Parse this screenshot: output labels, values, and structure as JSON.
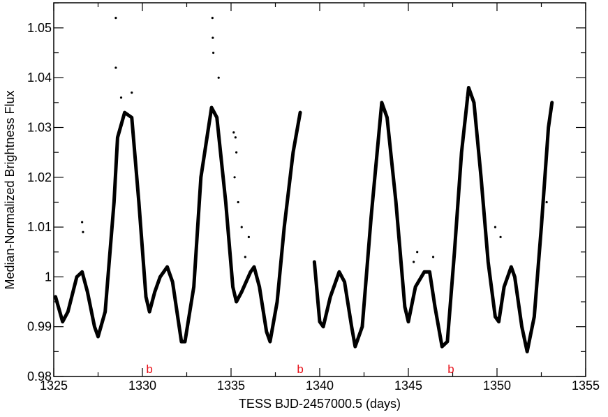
{
  "chart_data": {
    "type": "scatter",
    "title": "",
    "xlabel": "TESS BJD-2457000.5 (days)",
    "ylabel": "Median-Normalized Brightness Flux",
    "xlim": [
      1325,
      1355
    ],
    "ylim": [
      0.98,
      1.055
    ],
    "xticks": [
      1325,
      1330,
      1335,
      1340,
      1345,
      1350,
      1355
    ],
    "xtick_labels": [
      "1325",
      "1330",
      "1335",
      "1340",
      "1345",
      "1350",
      "1355"
    ],
    "yticks": [
      0.98,
      0.99,
      1.0,
      1.01,
      1.02,
      1.03,
      1.04,
      1.05
    ],
    "ytick_labels": [
      "0.98",
      "0.99",
      "1",
      "1.01",
      "1.02",
      "1.03",
      "1.04",
      "1.05"
    ],
    "grid": false,
    "point_color": "#000000",
    "marker_color": "#e8121b",
    "markers": [
      {
        "label": "b",
        "x": 1330.4
      },
      {
        "label": "b",
        "x": 1338.9
      },
      {
        "label": "b",
        "x": 1347.4
      }
    ],
    "series": [
      {
        "name": "segment-1",
        "points": [
          [
            1325.1,
            0.996
          ],
          [
            1325.5,
            0.991
          ],
          [
            1325.8,
            0.993
          ],
          [
            1326.3,
            1.0
          ],
          [
            1326.6,
            1.001
          ],
          [
            1326.9,
            0.997
          ],
          [
            1327.3,
            0.99
          ],
          [
            1327.5,
            0.988
          ],
          [
            1327.9,
            0.993
          ],
          [
            1328.4,
            1.015
          ],
          [
            1328.6,
            1.028
          ],
          [
            1329.0,
            1.033
          ],
          [
            1329.4,
            1.032
          ],
          [
            1329.8,
            1.015
          ],
          [
            1330.2,
            0.996
          ],
          [
            1330.4,
            0.993
          ],
          [
            1330.7,
            0.997
          ],
          [
            1331.0,
            1.0
          ],
          [
            1331.4,
            1.002
          ],
          [
            1331.7,
            0.999
          ],
          [
            1332.2,
            0.987
          ],
          [
            1332.4,
            0.987
          ],
          [
            1332.9,
            0.998
          ],
          [
            1333.3,
            1.02
          ],
          [
            1333.9,
            1.034
          ],
          [
            1334.2,
            1.032
          ],
          [
            1334.7,
            1.015
          ],
          [
            1335.1,
            0.998
          ],
          [
            1335.3,
            0.995
          ],
          [
            1335.6,
            0.997
          ],
          [
            1336.1,
            1.001
          ],
          [
            1336.3,
            1.002
          ],
          [
            1336.6,
            0.998
          ],
          [
            1337.0,
            0.989
          ],
          [
            1337.2,
            0.987
          ],
          [
            1337.6,
            0.995
          ],
          [
            1338.0,
            1.01
          ],
          [
            1338.5,
            1.025
          ],
          [
            1338.9,
            1.033
          ]
        ]
      },
      {
        "name": "segment-2",
        "points": [
          [
            1339.7,
            1.003
          ],
          [
            1340.0,
            0.991
          ],
          [
            1340.2,
            0.99
          ],
          [
            1340.6,
            0.996
          ],
          [
            1341.1,
            1.001
          ],
          [
            1341.4,
            0.999
          ],
          [
            1341.8,
            0.99
          ],
          [
            1342.0,
            0.986
          ],
          [
            1342.4,
            0.99
          ],
          [
            1342.9,
            1.012
          ],
          [
            1343.5,
            1.035
          ],
          [
            1343.8,
            1.032
          ],
          [
            1344.3,
            1.015
          ],
          [
            1344.8,
            0.994
          ],
          [
            1345.0,
            0.991
          ],
          [
            1345.4,
            0.998
          ],
          [
            1345.9,
            1.001
          ],
          [
            1346.2,
            1.001
          ],
          [
            1346.5,
            0.994
          ],
          [
            1346.9,
            0.986
          ],
          [
            1347.2,
            0.987
          ],
          [
            1347.6,
            1.005
          ],
          [
            1348.0,
            1.025
          ],
          [
            1348.4,
            1.038
          ],
          [
            1348.7,
            1.035
          ],
          [
            1349.1,
            1.02
          ],
          [
            1349.5,
            1.003
          ],
          [
            1349.9,
            0.992
          ],
          [
            1350.1,
            0.991
          ],
          [
            1350.4,
            0.998
          ],
          [
            1350.8,
            1.002
          ],
          [
            1351.0,
            1.0
          ],
          [
            1351.4,
            0.99
          ],
          [
            1351.7,
            0.985
          ],
          [
            1352.1,
            0.992
          ],
          [
            1352.5,
            1.01
          ],
          [
            1352.9,
            1.03
          ],
          [
            1353.1,
            1.035
          ]
        ]
      }
    ],
    "outliers": [
      [
        1328.5,
        1.052
      ],
      [
        1328.5,
        1.042
      ],
      [
        1329.4,
        1.037
      ],
      [
        1328.8,
        1.036
      ],
      [
        1326.6,
        1.011
      ],
      [
        1326.65,
        1.009
      ],
      [
        1333.95,
        1.052
      ],
      [
        1333.97,
        1.048
      ],
      [
        1334.0,
        1.045
      ],
      [
        1334.3,
        1.04
      ],
      [
        1335.15,
        1.029
      ],
      [
        1335.25,
        1.028
      ],
      [
        1335.3,
        1.025
      ],
      [
        1335.4,
        1.015
      ],
      [
        1335.2,
        1.02
      ],
      [
        1335.6,
        1.01
      ],
      [
        1336.0,
        1.008
      ],
      [
        1335.8,
        1.004
      ],
      [
        1345.5,
        1.005
      ],
      [
        1345.3,
        1.003
      ],
      [
        1346.4,
        1.004
      ],
      [
        1349.9,
        1.01
      ],
      [
        1350.2,
        1.008
      ],
      [
        1352.8,
        1.015
      ],
      [
        1348.3,
        1.036
      ]
    ]
  }
}
